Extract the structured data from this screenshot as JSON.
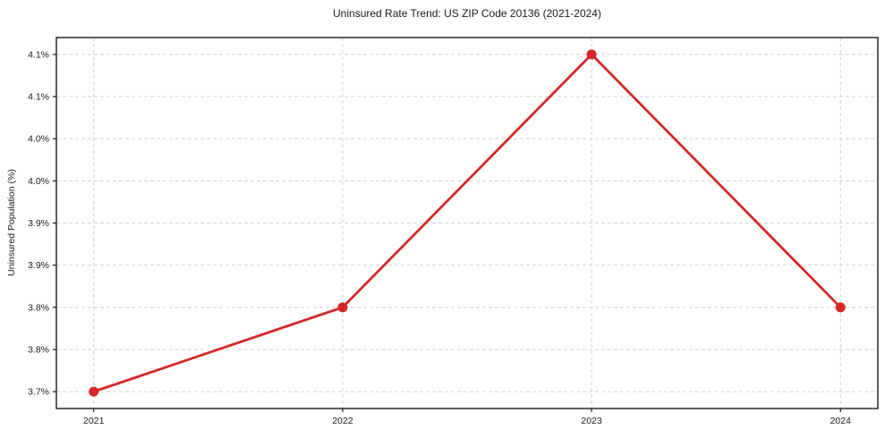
{
  "chart_data": {
    "type": "line",
    "title": "Uninsured Rate Trend: US ZIP Code 20136 (2021-2024)",
    "xlabel": "",
    "ylabel": "Uninsured Population (%)",
    "categories": [
      "2021",
      "2022",
      "2023",
      "2024"
    ],
    "x": [
      2021,
      2022,
      2023,
      2024
    ],
    "series": [
      {
        "name": "Uninsured Population (%)",
        "values": [
          3.7,
          3.8,
          4.1,
          3.8
        ],
        "color": "#d62728",
        "marker": "circle"
      }
    ],
    "xlim": [
      2020.85,
      2024.15
    ],
    "ylim": [
      3.68,
      4.12
    ],
    "y_ticks": [
      {
        "value": 3.7,
        "label": "3.7%"
      },
      {
        "value": 3.75,
        "label": "3.8%"
      },
      {
        "value": 3.8,
        "label": "3.8%"
      },
      {
        "value": 3.85,
        "label": "3.9%"
      },
      {
        "value": 3.9,
        "label": "3.9%"
      },
      {
        "value": 3.95,
        "label": "4.0%"
      },
      {
        "value": 4.0,
        "label": "4.0%"
      },
      {
        "value": 4.05,
        "label": "4.1%"
      },
      {
        "value": 4.1,
        "label": "4.1%"
      }
    ],
    "grid": {
      "show": true,
      "style": "dashed",
      "color": "#d3d3d3"
    },
    "styles": {
      "line_width": 2.8,
      "marker_radius": 5.5,
      "spine_color": "#1a1a1a",
      "tick_color": "#1a1a1a",
      "tick_label_color": "#1a1a1a",
      "tick_font_size": 10.5
    },
    "legend": {
      "show": false
    }
  }
}
